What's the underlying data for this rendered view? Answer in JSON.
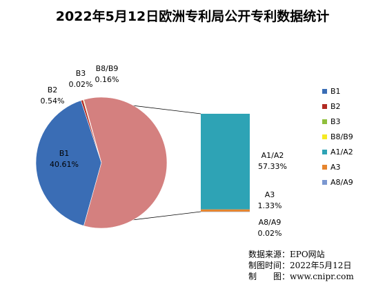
{
  "chart_data": {
    "type": "pie",
    "title": "2022年5月12日欧洲专利局公开专利数据统计",
    "main_pie": [
      {
        "name": "B1",
        "value": 40.61,
        "label_lines": [
          "B1",
          "40.61%"
        ],
        "color": "#3a6db5"
      },
      {
        "name": "B2",
        "value": 0.54,
        "label_lines": [
          "B2",
          "0.54%"
        ],
        "color": "#b22a22"
      },
      {
        "name": "B3",
        "value": 0.02,
        "label_lines": [
          "B3",
          "0.02%"
        ],
        "color": "#8fbf3c"
      },
      {
        "name": "B8/B9",
        "value": 0.16,
        "label_lines": [
          "B8/B9",
          "0.16%"
        ],
        "color": "#f5ea23"
      },
      {
        "name": "A (other)",
        "value": 58.67,
        "label_lines": [],
        "color": "#d4807f"
      }
    ],
    "secondary_bar": [
      {
        "name": "A1/A2",
        "value": 57.33,
        "label_lines": [
          "A1/A2",
          "57.33%"
        ],
        "color": "#2ea3b5"
      },
      {
        "name": "A3",
        "value": 1.33,
        "label_lines": [
          "A3",
          "1.33%"
        ],
        "color": "#e6852e"
      },
      {
        "name": "A8/A9",
        "value": 0.02,
        "label_lines": [
          "A8/A9",
          "0.02%"
        ],
        "color": "#7b97d0"
      }
    ],
    "legend": [
      {
        "name": "B1",
        "color": "#3a6db5"
      },
      {
        "name": "B2",
        "color": "#b22a22"
      },
      {
        "name": "B3",
        "color": "#8fbf3c"
      },
      {
        "name": "B8/B9",
        "color": "#f5ea23"
      },
      {
        "name": "A1/A2",
        "color": "#2ea3b5"
      },
      {
        "name": "A3",
        "color": "#e6852e"
      },
      {
        "name": "A8/A9",
        "color": "#7b97d0"
      }
    ],
    "legend_position": "right"
  },
  "source": {
    "line1": "数据来源：EPO网站",
    "line2": "制图时间：2022年5月12日",
    "line3": "制　　图：www.cnipr.com"
  }
}
